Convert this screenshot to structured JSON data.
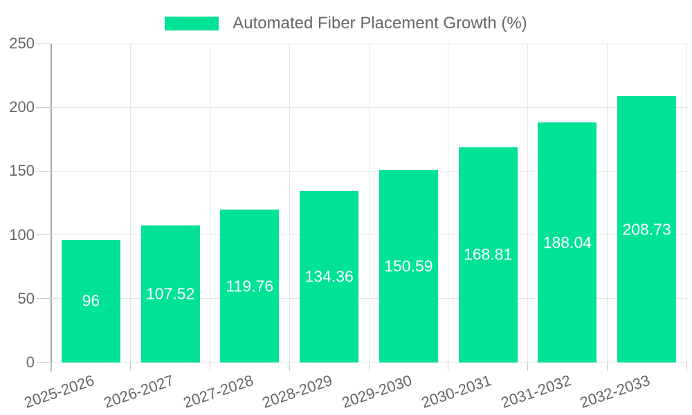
{
  "chart_data": {
    "type": "bar",
    "title": "Automated Fiber Placement Growth (%)",
    "xlabel": "",
    "ylabel": "",
    "categories": [
      "2025-2026",
      "2026-2027",
      "2027-2028",
      "2028-2029",
      "2029-2030",
      "2030-2031",
      "2031-2032",
      "2032-2033"
    ],
    "values": [
      96,
      107.52,
      119.76,
      134.36,
      150.59,
      168.81,
      188.04,
      208.73
    ],
    "value_labels": [
      "96",
      "107.52",
      "119.76",
      "134.36",
      "150.59",
      "168.81",
      "188.04",
      "208.73"
    ],
    "ylim": [
      0,
      250
    ],
    "yticks": [
      0,
      50,
      100,
      150,
      200,
      250
    ],
    "ytick_labels": [
      "0",
      "50",
      "100",
      "150",
      "200",
      "250"
    ],
    "grid": true,
    "legend_position": "top",
    "series_name": "Automated Fiber Placement Growth (%)",
    "colors": {
      "bar": "#00E396",
      "value_label": "#ffffff",
      "axis_text": "#666666",
      "legend_text": "#666666",
      "gridline": "#e6e6e6",
      "axis_line": "#a6a6a6",
      "tick": "#c9c9c9",
      "background": "#ffffff"
    }
  }
}
